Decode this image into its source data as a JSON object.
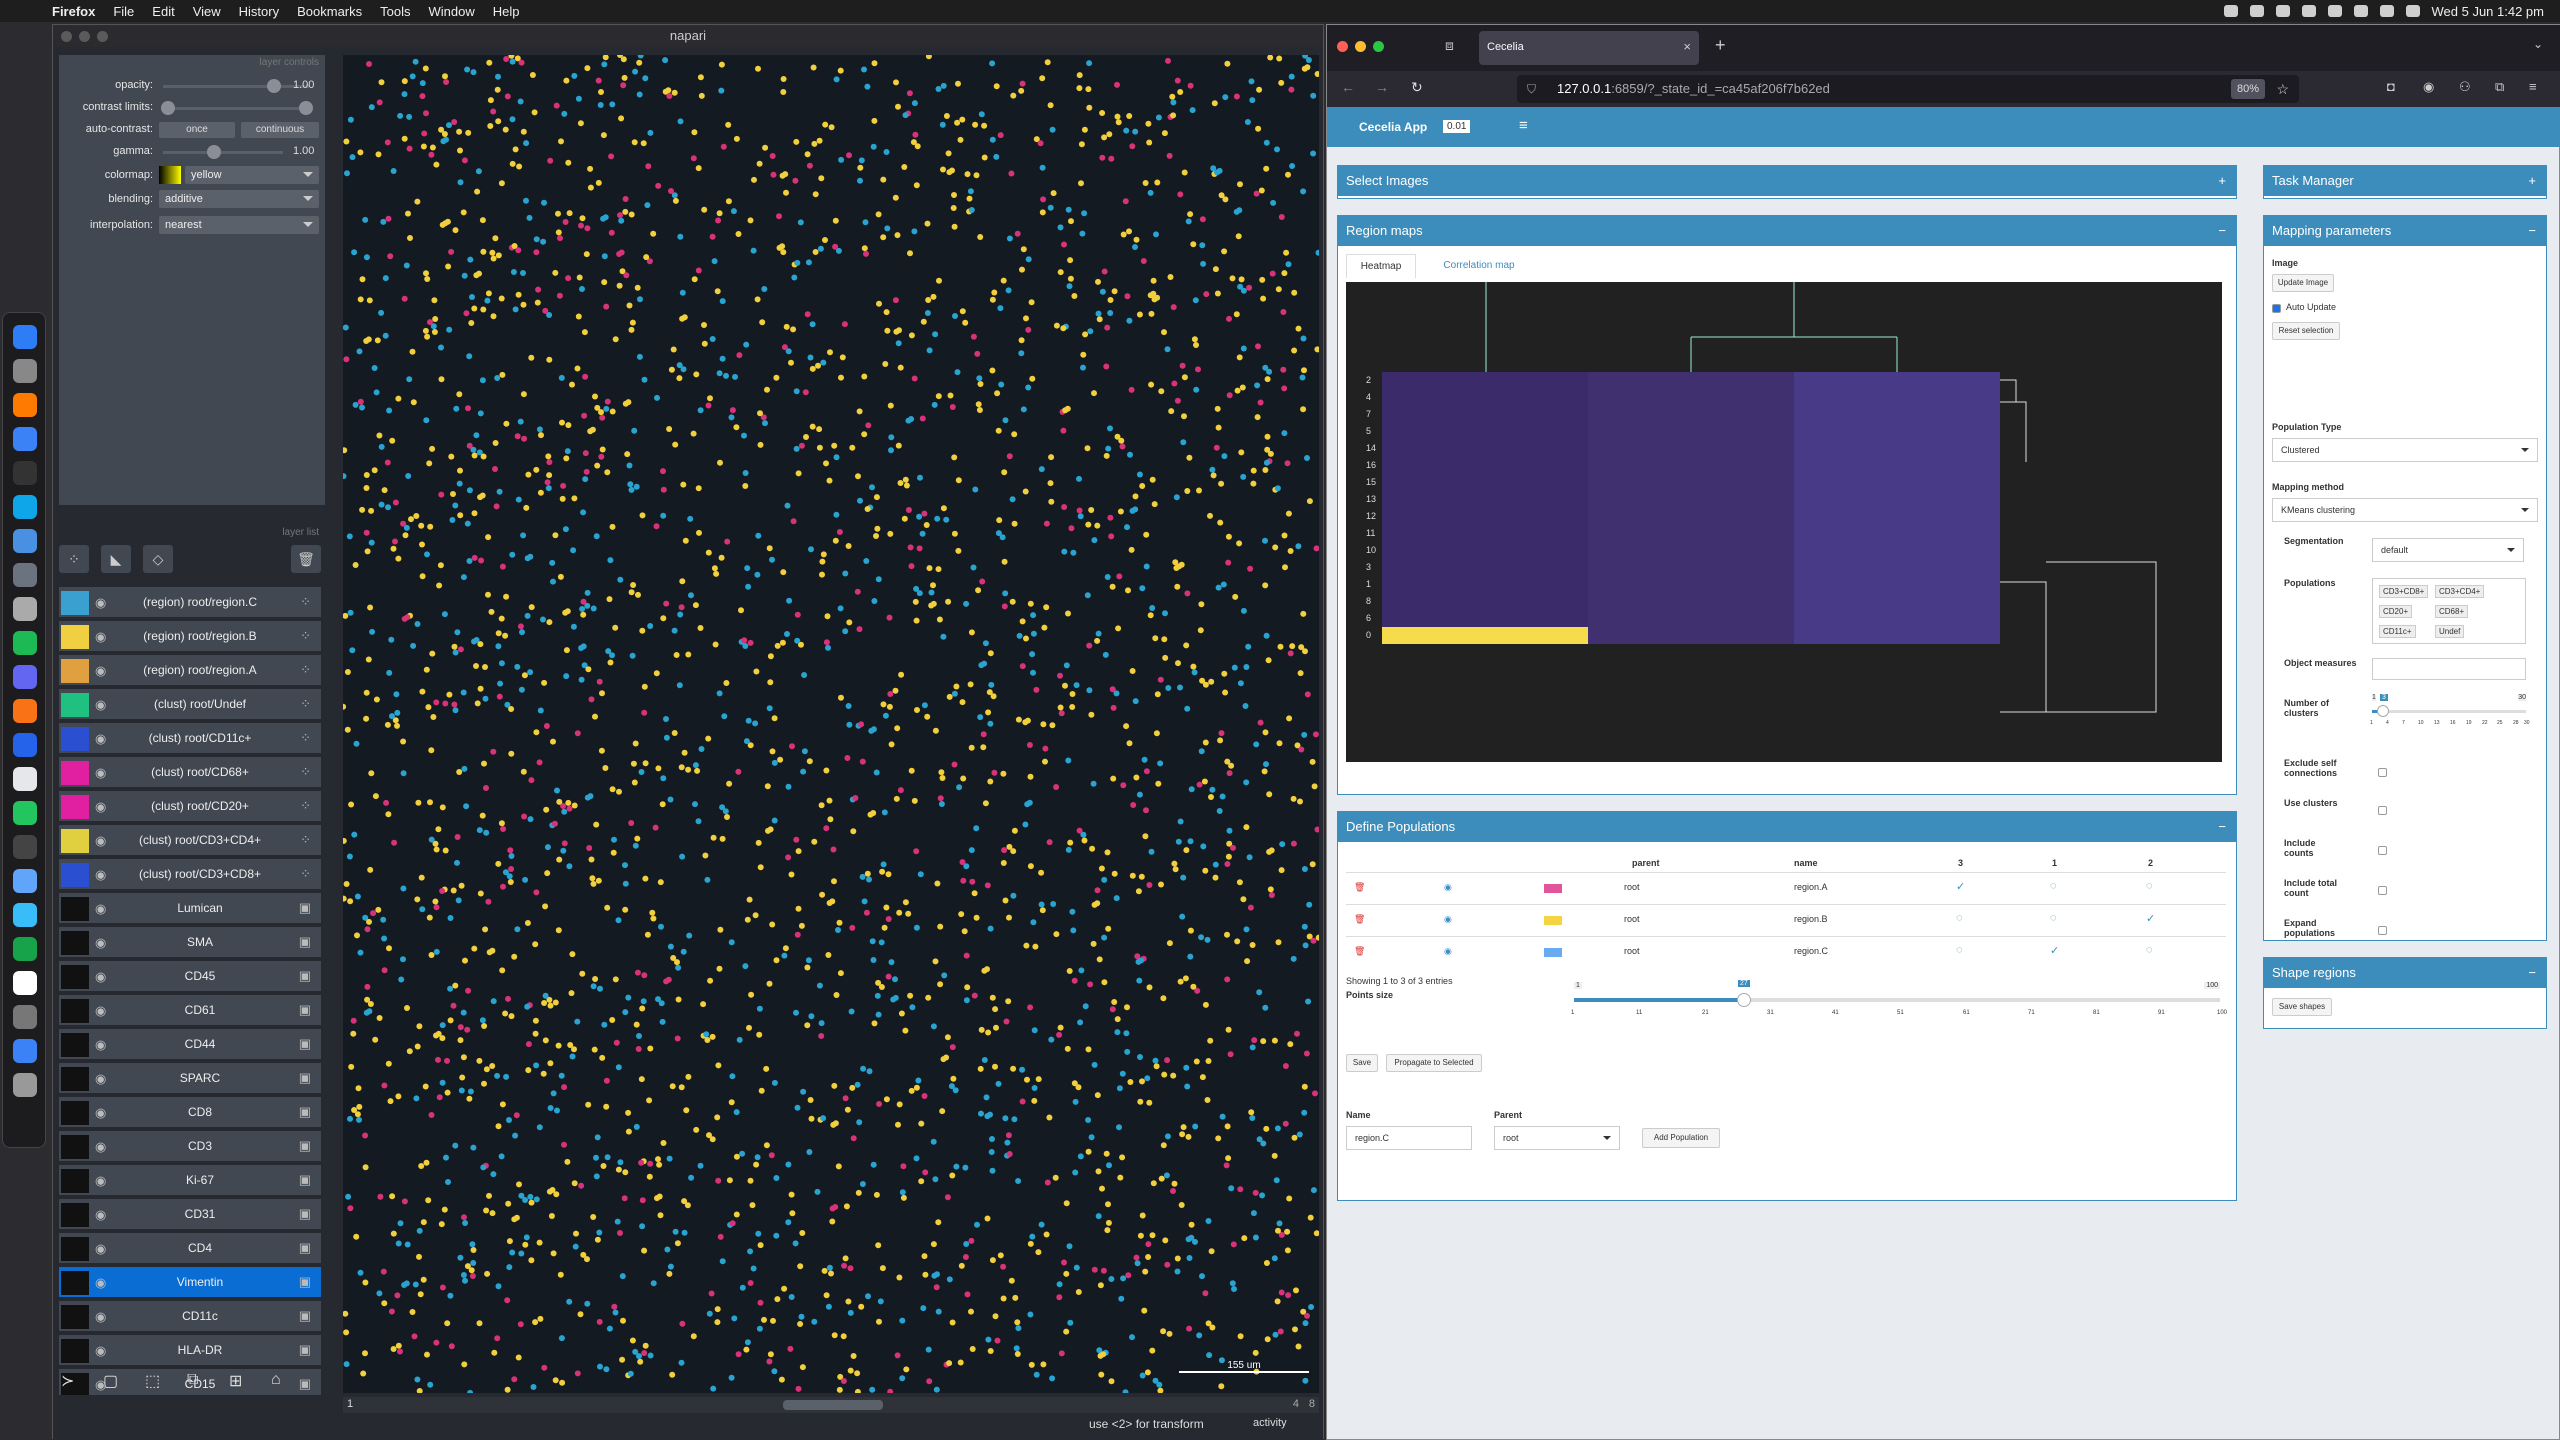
{
  "menubar": {
    "app": "Firefox",
    "items": [
      "File",
      "Edit",
      "View",
      "History",
      "Bookmarks",
      "Tools",
      "Window",
      "Help"
    ],
    "clock": "Wed 5 Jun  1:42 pm"
  },
  "napari": {
    "title": "napari",
    "layer_controls_title": "layer controls",
    "layer_list_title": "layer list",
    "controls": {
      "opacity_label": "opacity:",
      "opacity_value": "1.00",
      "contrast_label": "contrast limits:",
      "autocontrast_label": "auto-contrast:",
      "once": "once",
      "continuous": "continuous",
      "gamma_label": "gamma:",
      "gamma_value": "1.00",
      "colormap_label": "colormap:",
      "colormap_value": "yellow",
      "blending_label": "blending:",
      "blending_value": "additive",
      "interp_label": "interpolation:",
      "interp_value": "nearest"
    },
    "layers": [
      {
        "name": "(region) root/region.C"
      },
      {
        "name": "(region) root/region.B"
      },
      {
        "name": "(region) root/region.A"
      },
      {
        "name": "(clust) root/Undef"
      },
      {
        "name": "(clust) root/CD11c+"
      },
      {
        "name": "(clust) root/CD68+"
      },
      {
        "name": "(clust) root/CD20+"
      },
      {
        "name": "(clust) root/CD3+CD4+"
      },
      {
        "name": "(clust) root/CD3+CD8+"
      },
      {
        "name": "Lumican"
      },
      {
        "name": "SMA"
      },
      {
        "name": "CD45"
      },
      {
        "name": "CD61"
      },
      {
        "name": "CD44"
      },
      {
        "name": "SPARC"
      },
      {
        "name": "CD8"
      },
      {
        "name": "CD3"
      },
      {
        "name": "Ki-67"
      },
      {
        "name": "CD31"
      },
      {
        "name": "CD4"
      },
      {
        "name": "Vimentin"
      },
      {
        "name": "CD11c"
      },
      {
        "name": "HLA-DR"
      },
      {
        "name": "CD15"
      }
    ],
    "selected_layer": "Vimentin",
    "slider_value": "1",
    "slider_max": "4",
    "slider_end": "8",
    "scale_bar": "155 um",
    "status": "use <2> for transform",
    "activity": "activity"
  },
  "browser": {
    "tab_title": "Cecelia",
    "url_host": "127.0.0.1",
    "url_rest": ":6859/?_state_id_=ca45af206f7b62ed",
    "zoom": "80%"
  },
  "app": {
    "name": "Cecelia App",
    "version": "0.01",
    "select_images": "Select Images",
    "region_maps": "Region maps",
    "tabs": [
      "Heatmap",
      "Correlation map"
    ],
    "heatmap_rows": [
      "2",
      "4",
      "7",
      "5",
      "14",
      "16",
      "15",
      "13",
      "12",
      "11",
      "10",
      "3",
      "1",
      "8",
      "6",
      "0"
    ],
    "define_populations": "Define Populations",
    "table_headers": [
      "parent",
      "name",
      "3",
      "1",
      "2"
    ],
    "table_rows": [
      {
        "parent": "root",
        "name": "region.A",
        "color": "#e0559c"
      },
      {
        "parent": "root",
        "name": "region.B",
        "color": "#f5d442"
      },
      {
        "parent": "root",
        "name": "region.C",
        "color": "#6aaaf0"
      }
    ],
    "showing": "Showing 1 to 3 of 3 entries",
    "points_size": "Points size",
    "points_min": "1",
    "points_max": "100",
    "points_value": "27",
    "points_ticks": [
      "1",
      "11",
      "21",
      "31",
      "41",
      "51",
      "61",
      "71",
      "81",
      "91",
      "100"
    ],
    "save": "Save",
    "propagate": "Propagate to Selected",
    "name_label": "Name",
    "name_value": "region.C",
    "parent_label": "Parent",
    "parent_value": "root",
    "add_population": "Add Population",
    "task_manager": "Task Manager",
    "mapping_parameters": "Mapping parameters",
    "image_label": "Image",
    "update_image": "Update Image",
    "auto_update": "Auto Update",
    "reset_selection": "Reset selection",
    "population_type_label": "Population Type",
    "population_type": "Clustered",
    "mapping_method_label": "Mapping method",
    "mapping_method": "KMeans clustering",
    "segmentation_label": "Segmentation",
    "segmentation": "default",
    "populations_label": "Populations",
    "populations": [
      "CD3+CD8+",
      "CD3+CD4+",
      "CD20+",
      "CD68+",
      "CD11c+",
      "Undef"
    ],
    "object_measures_label": "Object measures",
    "number_clusters_label": "Number of clusters",
    "clusters_min": "1",
    "clusters_max": "30",
    "clusters_value": "3",
    "clusters_ticks": [
      "1",
      "4",
      "7",
      "10",
      "13",
      "16",
      "19",
      "22",
      "25",
      "28",
      "30"
    ],
    "exclude_self": "Exclude self connections",
    "use_clusters": "Use clusters",
    "include_counts": "Include counts",
    "include_total": "Include total count",
    "expand_populations": "Expand populations",
    "shape_regions": "Shape regions",
    "save_shapes": "Save shapes"
  }
}
